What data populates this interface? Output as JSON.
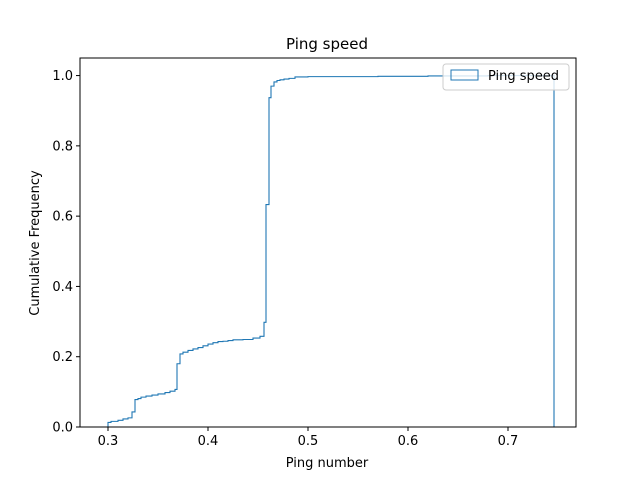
{
  "chart_data": {
    "type": "line",
    "subtype": "cumulative step histogram",
    "title": "Ping speed",
    "xlabel": "Ping number",
    "ylabel": "Cumulative Frequency",
    "xlim": [
      0.272,
      0.768
    ],
    "ylim": [
      0.0,
      1.05
    ],
    "xticks": [
      0.3,
      0.4,
      0.5,
      0.6,
      0.7
    ],
    "xtick_labels": [
      "0.3",
      "0.4",
      "0.5",
      "0.6",
      "0.7"
    ],
    "yticks": [
      0.0,
      0.2,
      0.4,
      0.6,
      0.8,
      1.0
    ],
    "ytick_labels": [
      "0.0",
      "0.2",
      "0.4",
      "0.6",
      "0.8",
      "1.0"
    ],
    "grid": false,
    "legend_position": "top-right",
    "series": [
      {
        "name": "Ping speed",
        "color": "#1f77b4",
        "x": [
          0.296,
          0.3,
          0.303,
          0.31,
          0.315,
          0.32,
          0.324,
          0.327,
          0.33,
          0.333,
          0.338,
          0.344,
          0.35,
          0.357,
          0.362,
          0.367,
          0.369,
          0.372,
          0.375,
          0.38,
          0.385,
          0.39,
          0.395,
          0.4,
          0.405,
          0.41,
          0.415,
          0.42,
          0.425,
          0.435,
          0.445,
          0.452,
          0.456,
          0.458,
          0.461,
          0.463,
          0.466,
          0.469,
          0.472,
          0.476,
          0.481,
          0.487,
          0.5,
          0.57,
          0.62,
          0.68,
          0.746
        ],
        "y": [
          0.0,
          0.013,
          0.016,
          0.019,
          0.023,
          0.026,
          0.043,
          0.078,
          0.081,
          0.085,
          0.088,
          0.091,
          0.094,
          0.098,
          0.102,
          0.107,
          0.18,
          0.208,
          0.213,
          0.218,
          0.222,
          0.226,
          0.231,
          0.236,
          0.24,
          0.243,
          0.244,
          0.246,
          0.248,
          0.249,
          0.253,
          0.258,
          0.298,
          0.633,
          0.937,
          0.97,
          0.982,
          0.986,
          0.988,
          0.99,
          0.992,
          0.996,
          0.997,
          0.998,
          0.999,
          1.0,
          1.0
        ]
      }
    ]
  }
}
